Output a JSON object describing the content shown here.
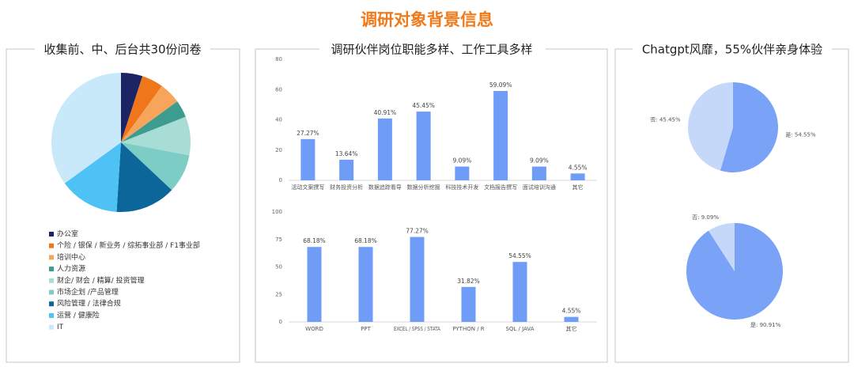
{
  "header": {
    "title": "调研对象背景信息"
  },
  "chart_data": [
    {
      "type": "pie",
      "title": "收集前、中、后台共30份问卷",
      "legend": true,
      "categories": [
        "办公室",
        "个险 / 银保 / 新业务 / 综拓事业部 / F1事业部",
        "培训中心",
        "人力资源",
        "财企/ 财会 / 精算/ 投资管理",
        "市场企划 /产品管理",
        "风险管理 / 法律合规",
        "运营 / 健康险",
        "IT"
      ],
      "values": [
        5,
        5,
        5,
        4,
        9,
        9,
        14,
        14,
        35
      ],
      "colors": [
        "#1c2466",
        "#f0761b",
        "#f6a55a",
        "#3c9c90",
        "#a8ddd6",
        "#7ccdc5",
        "#0c6699",
        "#4ec1f5",
        "#c7e9f9"
      ]
    },
    {
      "type": "bar",
      "title": "调研伙伴岗位职能多样、工作工具多样",
      "color": "#6f9cf7",
      "categories": [
        "活动文案撰写",
        "财务投资分析",
        "数据追踪看导",
        "数据分析挖掘",
        "科技技术开发",
        "文档报告撰写",
        "面试培训沟通",
        "其它"
      ],
      "values": [
        27.27,
        13.64,
        40.91,
        45.45,
        9.09,
        59.09,
        9.09,
        4.55
      ],
      "value_labels": [
        "27.27%",
        "13.64%",
        "40.91%",
        "45.45%",
        "9.09%",
        "59.09%",
        "9.09%",
        "4.55%"
      ],
      "ylim": [
        0,
        80
      ],
      "yticks": [
        0,
        20,
        40,
        60,
        80
      ]
    },
    {
      "type": "bar",
      "color": "#6f9cf7",
      "categories": [
        "WORD",
        "PPT",
        "EXCEL / SPSS / STATA",
        "PYTHON / R",
        "SQL / JAVA",
        "其它"
      ],
      "values": [
        68.18,
        68.18,
        77.27,
        31.82,
        54.55,
        4.55
      ],
      "value_labels": [
        "68.18%",
        "68.18%",
        "77.27%",
        "31.82%",
        "54.55%",
        "4.55%"
      ],
      "ylim": [
        0,
        100
      ],
      "yticks": [
        0,
        25,
        50,
        75,
        100
      ]
    },
    {
      "type": "pie",
      "title": "Chatgpt风靡，55%伙伴亲身体验",
      "categories": [
        "是",
        "否"
      ],
      "values": [
        54.55,
        45.45
      ],
      "value_labels": [
        "54.55%",
        "45.45%"
      ],
      "colors": [
        "#7aa2f7",
        "#c6d8fa"
      ]
    },
    {
      "type": "pie",
      "categories": [
        "是",
        "否"
      ],
      "values": [
        90.91,
        9.09
      ],
      "value_labels": [
        "90.91%",
        "9.09%"
      ],
      "colors": [
        "#7aa2f7",
        "#c6d8fa"
      ]
    }
  ]
}
